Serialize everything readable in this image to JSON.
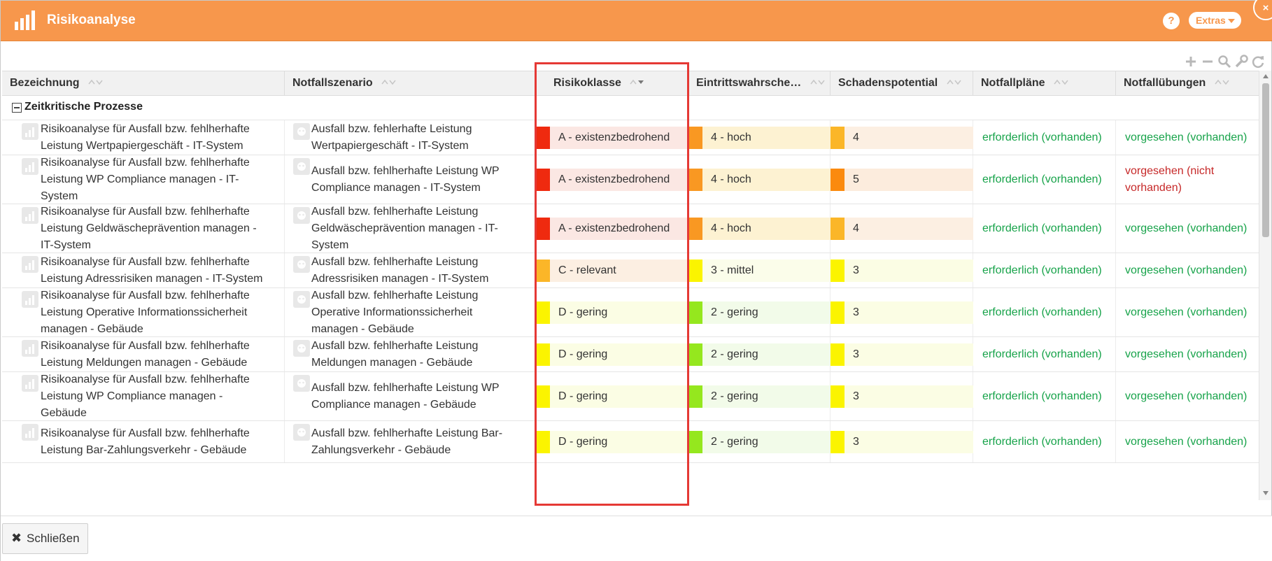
{
  "window": {
    "title": "Risikoanalyse",
    "help_label": "?",
    "extras_label": "Extras",
    "close_glyph": "×"
  },
  "toolbar": {
    "icons": [
      "plus-icon",
      "minus-icon",
      "search-icon",
      "wrench-icon",
      "refresh-icon"
    ]
  },
  "columns": [
    {
      "label": "Bezeichnung"
    },
    {
      "label": "Notfallszenario"
    },
    {
      "label": "Risikoklasse"
    },
    {
      "label": "Eintrittswahrsche…"
    },
    {
      "label": "Schadenspotential"
    },
    {
      "label": "Notfallpläne"
    },
    {
      "label": "Notfallübungen"
    }
  ],
  "group": {
    "label": "Zeitkritische Prozesse"
  },
  "colors": {
    "header_bar": "#f7974c",
    "status_green": "#17a34a",
    "status_red": "#c62828",
    "highlight": "#e53935"
  },
  "rows": [
    {
      "bezeichnung": [
        "Risikoanalyse für Ausfall bzw. fehlherhafte",
        "Leistung Wertpapiergeschäft - IT-System"
      ],
      "szenario": [
        "Ausfall bzw. fehlerhafte Leistung",
        "Wertpapiergeschäft - IT-System"
      ],
      "risikoklasse": "A - existenzbedrohend",
      "eintritt": "4 - hoch",
      "schaden": "4",
      "plaene": "erforderlich (vorhanden)",
      "uebungen": [
        "vorgesehen (vorhanden)"
      ]
    },
    {
      "bezeichnung": [
        "Risikoanalyse für Ausfall bzw. fehlherhafte",
        "Leistung WP Compliance managen - IT-",
        "System"
      ],
      "szenario": [
        "Ausfall bzw. fehlherhafte Leistung WP",
        "Compliance managen - IT-System"
      ],
      "risikoklasse": "A - existenzbedrohend",
      "eintritt": "4 - hoch",
      "schaden": "5",
      "plaene": "erforderlich (vorhanden)",
      "uebungen": [
        "vorgesehen (nicht",
        "vorhanden)"
      ]
    },
    {
      "bezeichnung": [
        "Risikoanalyse für Ausfall bzw. fehlherhafte",
        "Leistung Geldwäscheprävention managen -",
        "IT-System"
      ],
      "szenario": [
        "Ausfall bzw. fehlherhafte Leistung",
        "Geldwäscheprävention managen - IT-",
        "System"
      ],
      "risikoklasse": "A - existenzbedrohend",
      "eintritt": "4 - hoch",
      "schaden": "4",
      "plaene": "erforderlich (vorhanden)",
      "uebungen": [
        "vorgesehen (vorhanden)"
      ]
    },
    {
      "bezeichnung": [
        "Risikoanalyse für Ausfall bzw. fehlherhafte",
        "Leistung Adressrisiken managen - IT-System"
      ],
      "szenario": [
        "Ausfall bzw. fehlherhafte Leistung",
        "Adressrisiken managen - IT-System"
      ],
      "risikoklasse": "C - relevant",
      "eintritt": "3 - mittel",
      "schaden": "3",
      "plaene": "erforderlich (vorhanden)",
      "uebungen": [
        "vorgesehen (vorhanden)"
      ]
    },
    {
      "bezeichnung": [
        "Risikoanalyse für Ausfall bzw. fehlherhafte",
        "Leistung Operative Informationssicherheit",
        "managen - Gebäude"
      ],
      "szenario": [
        "Ausfall bzw. fehlherhafte Leistung",
        "Operative Informationssicherheit",
        "managen - Gebäude"
      ],
      "risikoklasse": "D - gering",
      "eintritt": "2 - gering",
      "schaden": "3",
      "plaene": "erforderlich (vorhanden)",
      "uebungen": [
        "vorgesehen (vorhanden)"
      ]
    },
    {
      "bezeichnung": [
        "Risikoanalyse für Ausfall bzw. fehlherhafte",
        "Leistung Meldungen managen - Gebäude"
      ],
      "szenario": [
        "Ausfall bzw. fehlherhafte Leistung",
        "Meldungen managen - Gebäude"
      ],
      "risikoklasse": "D - gering",
      "eintritt": "2 - gering",
      "schaden": "3",
      "plaene": "erforderlich (vorhanden)",
      "uebungen": [
        "vorgesehen (vorhanden)"
      ]
    },
    {
      "bezeichnung": [
        "Risikoanalyse für Ausfall bzw. fehlherhafte",
        "Leistung WP Compliance managen -",
        "Gebäude"
      ],
      "szenario": [
        "Ausfall bzw. fehlherhafte Leistung WP",
        "Compliance managen - Gebäude"
      ],
      "risikoklasse": "D - gering",
      "eintritt": "2 - gering",
      "schaden": "3",
      "plaene": "erforderlich (vorhanden)",
      "uebungen": [
        "vorgesehen (vorhanden)"
      ]
    },
    {
      "bezeichnung": [
        "Risikoanalyse für Ausfall bzw. fehlherhafte",
        "Leistung Bar-Zahlungsverkehr - Gebäude"
      ],
      "szenario": [
        "Ausfall bzw. fehlherhafte Leistung Bar-",
        "Zahlungsverkehr - Gebäude"
      ],
      "risikoklasse": "D - gering",
      "eintritt": "2 - gering",
      "schaden": "3",
      "plaene": "erforderlich (vorhanden)",
      "uebungen": [
        "vorgesehen (vorhanden)"
      ]
    }
  ],
  "footer": {
    "close_label": "Schließen"
  }
}
